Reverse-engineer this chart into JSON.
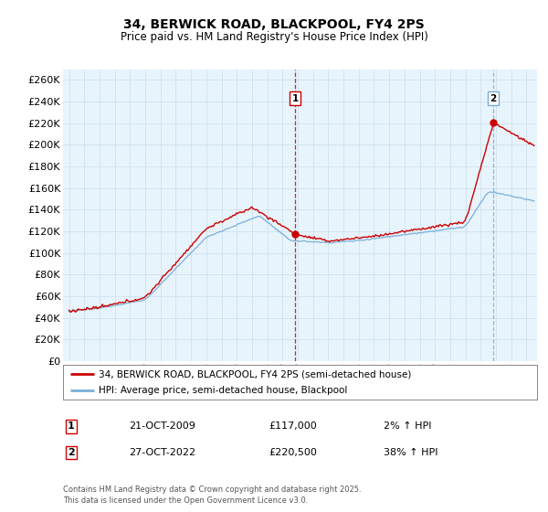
{
  "title": "34, BERWICK ROAD, BLACKPOOL, FY4 2PS",
  "subtitle": "Price paid vs. HM Land Registry's House Price Index (HPI)",
  "legend_property": "34, BERWICK ROAD, BLACKPOOL, FY4 2PS (semi-detached house)",
  "legend_hpi": "HPI: Average price, semi-detached house, Blackpool",
  "footer": "Contains HM Land Registry data © Crown copyright and database right 2025.\nThis data is licensed under the Open Government Licence v3.0.",
  "sale1_date": "21-OCT-2009",
  "sale1_price": "£117,000",
  "sale1_hpi": "2% ↑ HPI",
  "sale1_x": 2009.82,
  "sale1_y": 117000,
  "sale2_date": "27-OCT-2022",
  "sale2_price": "£220,500",
  "sale2_hpi": "38% ↑ HPI",
  "sale2_x": 2022.82,
  "sale2_y": 220500,
  "property_color": "#cc0000",
  "hpi_color": "#7aaed6",
  "background_color": "#ffffff",
  "grid_color": "#d0e4f0",
  "plot_bg_color": "#e8f4fc",
  "ylim": [
    0,
    270000
  ],
  "xlim_left": 1994.6,
  "xlim_right": 2025.7
}
